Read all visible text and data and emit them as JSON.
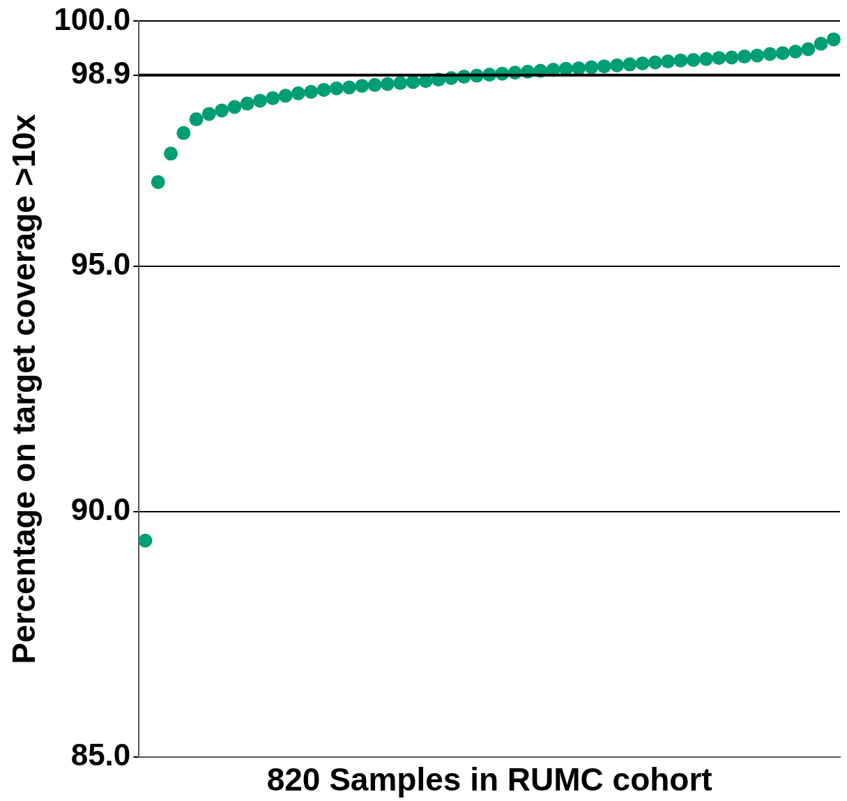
{
  "chart_data": {
    "type": "scatter",
    "xlabel": "820 Samples in RUMC cohort",
    "ylabel": "Percentage on target coverage >10x",
    "categories": [
      null,
      null,
      null,
      null,
      null,
      null,
      null,
      null,
      null,
      null,
      null,
      null,
      null,
      null,
      null,
      null,
      null,
      null,
      null,
      null,
      null,
      null,
      null,
      null,
      null,
      null,
      null,
      null,
      null,
      null,
      null,
      null,
      null,
      null,
      null,
      null,
      null,
      null,
      null,
      null,
      null,
      null,
      null,
      null,
      null,
      null,
      null,
      null,
      null,
      null,
      null,
      null,
      null,
      null,
      null
    ],
    "series": [
      {
        "color": "#009e73",
        "values": [
          89.41,
          96.72,
          97.3,
          97.72,
          98.0,
          98.11,
          98.18,
          98.25,
          98.32,
          98.38,
          98.43,
          98.48,
          98.53,
          98.56,
          98.6,
          98.63,
          98.65,
          98.68,
          98.7,
          98.72,
          98.74,
          98.76,
          98.78,
          98.81,
          98.84,
          98.87,
          98.89,
          98.91,
          98.93,
          98.95,
          98.97,
          98.99,
          99.01,
          99.03,
          99.04,
          99.06,
          99.08,
          99.1,
          99.12,
          99.14,
          99.16,
          99.18,
          99.2,
          99.21,
          99.23,
          99.25,
          99.26,
          99.28,
          99.3,
          99.33,
          99.35,
          99.38,
          99.43,
          99.54,
          99.63
        ]
      }
    ],
    "ylim": [
      85,
      100
    ],
    "yticks": [
      {
        "value": 85,
        "label": "85.0"
      },
      {
        "value": 90,
        "label": "90.0"
      },
      {
        "value": 95,
        "label": "95.0"
      },
      {
        "value": 98.9,
        "label": "98.9"
      },
      {
        "value": 100,
        "label": "100.0"
      }
    ],
    "tick_labels": "y",
    "grid": "y",
    "marker": "circle",
    "ref_lines": [
      {
        "axis": "y",
        "value": 98.9,
        "color": "#000000"
      }
    ]
  }
}
